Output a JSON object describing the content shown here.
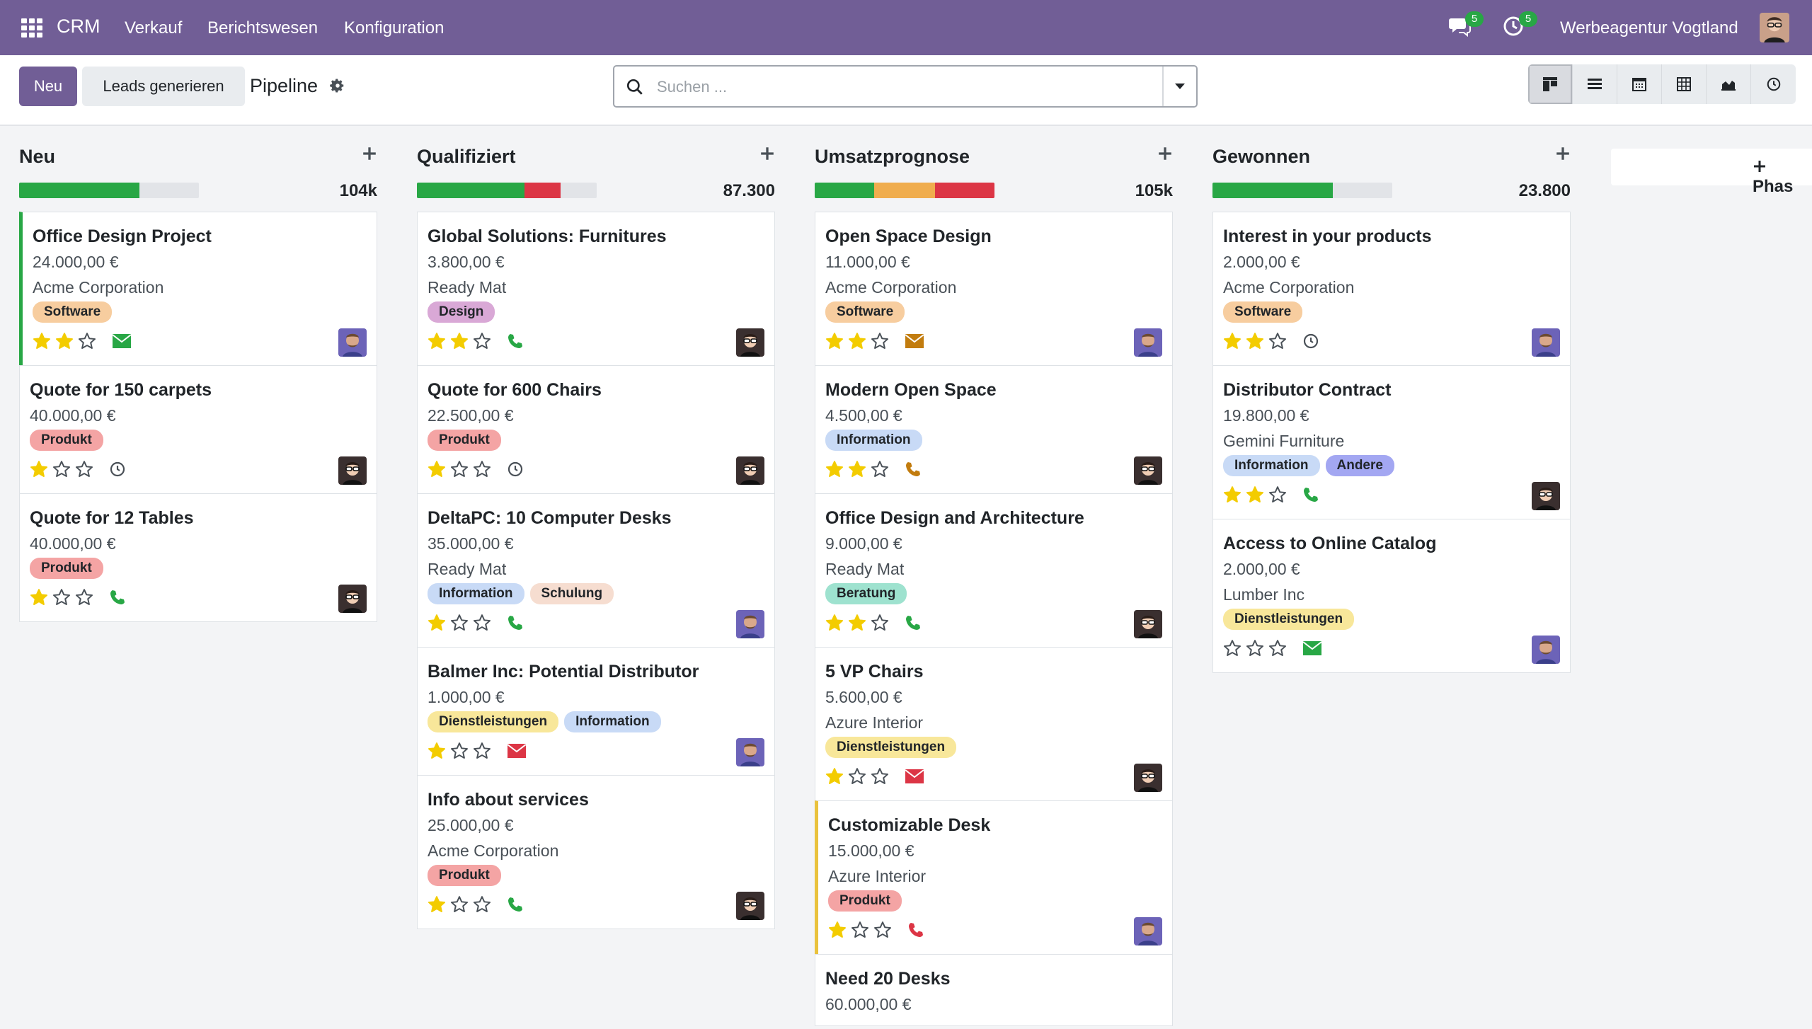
{
  "nav": {
    "brand": "CRM",
    "menus": [
      "Verkauf",
      "Berichtswesen",
      "Konfiguration"
    ],
    "messages_count": "5",
    "activities_count": "5",
    "company": "Werbeagentur Vogtland"
  },
  "control": {
    "new_label": "Neu",
    "generate_label": "Leads generieren",
    "breadcrumb": "Pipeline",
    "search_placeholder": "Suchen ...",
    "views": [
      "kanban",
      "list",
      "calendar",
      "pivot",
      "graph",
      "activity"
    ]
  },
  "add_phase_label": "Phas",
  "colors": {
    "nav": "#715e96",
    "progress_green": "#28a745",
    "progress_orange": "#f0ad4e",
    "progress_red": "#dc3545",
    "star": "#f3cc00",
    "mail_green": "#28a745",
    "mail_red": "#dc3545",
    "phone_green": "#28a745",
    "phone_orange": "#c27c0e",
    "phone_red": "#dc3545"
  },
  "columns": [
    {
      "title": "Neu",
      "total": "104k",
      "progress": {
        "green": 0.67,
        "orange": 0,
        "red": 0
      },
      "cards": [
        {
          "title": "Office Design Project",
          "amount": "24.000,00 €",
          "company": "Acme Corporation",
          "tags": [
            {
              "label": "Software",
              "bg": "#f7cd9f"
            }
          ],
          "stars": 2,
          "activity": "mail-green",
          "avatar": "a",
          "border": "green"
        },
        {
          "title": "Quote for 150 carpets",
          "amount": "40.000,00 €",
          "company": "",
          "tags": [
            {
              "label": "Produkt",
              "bg": "#f4a4a4"
            }
          ],
          "stars": 1,
          "activity": "clock",
          "avatar": "b",
          "border": ""
        },
        {
          "title": "Quote for 12 Tables",
          "amount": "40.000,00 €",
          "company": "",
          "tags": [
            {
              "label": "Produkt",
              "bg": "#f4a4a4"
            }
          ],
          "stars": 1,
          "activity": "phone-green",
          "avatar": "b",
          "border": ""
        }
      ]
    },
    {
      "title": "Qualifiziert",
      "total": "87.300",
      "progress": {
        "green": 0.6,
        "orange": 0,
        "red": 0.2
      },
      "cards": [
        {
          "title": "Global Solutions: Furnitures",
          "amount": "3.800,00 €",
          "company": "Ready Mat",
          "tags": [
            {
              "label": "Design",
              "bg": "#d9a8d6"
            }
          ],
          "stars": 2,
          "activity": "phone-green",
          "avatar": "b",
          "border": ""
        },
        {
          "title": "Quote for 600 Chairs",
          "amount": "22.500,00 €",
          "company": "",
          "tags": [
            {
              "label": "Produkt",
              "bg": "#f4a4a4"
            }
          ],
          "stars": 1,
          "activity": "clock",
          "avatar": "b",
          "border": ""
        },
        {
          "title": "DeltaPC: 10 Computer Desks",
          "amount": "35.000,00 €",
          "company": "Ready Mat",
          "tags": [
            {
              "label": "Information",
              "bg": "#c8daf6"
            },
            {
              "label": "Schulung",
              "bg": "#f6ddd0"
            }
          ],
          "stars": 1,
          "activity": "phone-green",
          "avatar": "a",
          "border": ""
        },
        {
          "title": "Balmer Inc: Potential Distributor",
          "amount": "1.000,00 €",
          "company": "",
          "tags": [
            {
              "label": "Dienstleistungen",
              "bg": "#f8e79a"
            },
            {
              "label": "Information",
              "bg": "#c8daf6"
            }
          ],
          "stars": 1,
          "activity": "mail-red",
          "avatar": "a",
          "border": ""
        },
        {
          "title": "Info about services",
          "amount": "25.000,00 €",
          "company": "Acme Corporation",
          "tags": [
            {
              "label": "Produkt",
              "bg": "#f4a4a4"
            }
          ],
          "stars": 1,
          "activity": "phone-green",
          "avatar": "b",
          "border": ""
        }
      ]
    },
    {
      "title": "Umsatzprognose",
      "total": "105k",
      "progress": {
        "green": 0.33,
        "orange": 0.34,
        "red": 0.33
      },
      "cards": [
        {
          "title": "Open Space Design",
          "amount": "11.000,00 €",
          "company": "Acme Corporation",
          "tags": [
            {
              "label": "Software",
              "bg": "#f7cd9f"
            }
          ],
          "stars": 2,
          "activity": "mail-orange",
          "avatar": "a",
          "border": ""
        },
        {
          "title": "Modern Open Space",
          "amount": "4.500,00 €",
          "company": "",
          "tags": [
            {
              "label": "Information",
              "bg": "#c8daf6"
            }
          ],
          "stars": 2,
          "activity": "phone-orange",
          "avatar": "b",
          "border": ""
        },
        {
          "title": "Office Design and Architecture",
          "amount": "9.000,00 €",
          "company": "Ready Mat",
          "tags": [
            {
              "label": "Beratung",
              "bg": "#9ee2cf"
            }
          ],
          "stars": 2,
          "activity": "phone-green",
          "avatar": "b",
          "border": ""
        },
        {
          "title": "5 VP Chairs",
          "amount": "5.600,00 €",
          "company": "Azure Interior",
          "tags": [
            {
              "label": "Dienstleistungen",
              "bg": "#f8e79a"
            }
          ],
          "stars": 1,
          "activity": "mail-red",
          "avatar": "b",
          "border": ""
        },
        {
          "title": "Customizable Desk",
          "amount": "15.000,00 €",
          "company": "Azure Interior",
          "tags": [
            {
              "label": "Produkt",
              "bg": "#f4a4a4"
            }
          ],
          "stars": 1,
          "activity": "phone-red",
          "avatar": "a",
          "border": "yellow"
        },
        {
          "title": "Need 20 Desks",
          "amount": "60.000,00 €",
          "company": "",
          "tags": [],
          "stars": 0,
          "activity": "",
          "avatar": "",
          "border": ""
        }
      ]
    },
    {
      "title": "Gewonnen",
      "total": "23.800",
      "progress": {
        "green": 0.67,
        "orange": 0,
        "red": 0
      },
      "cards": [
        {
          "title": "Interest in your products",
          "amount": "2.000,00 €",
          "company": "Acme Corporation",
          "tags": [
            {
              "label": "Software",
              "bg": "#f7cd9f"
            }
          ],
          "stars": 2,
          "activity": "clock",
          "avatar": "a",
          "border": ""
        },
        {
          "title": "Distributor Contract",
          "amount": "19.800,00 €",
          "company": "Gemini Furniture",
          "tags": [
            {
              "label": "Information",
              "bg": "#c8daf6"
            },
            {
              "label": "Andere",
              "bg": "#a3a7f2"
            }
          ],
          "stars": 2,
          "activity": "phone-green",
          "avatar": "b",
          "border": ""
        },
        {
          "title": "Access to Online Catalog",
          "amount": "2.000,00 €",
          "company": "Lumber Inc",
          "tags": [
            {
              "label": "Dienstleistungen",
              "bg": "#f8e79a"
            }
          ],
          "stars": 0,
          "activity": "mail-green",
          "avatar": "a",
          "border": ""
        }
      ]
    }
  ]
}
